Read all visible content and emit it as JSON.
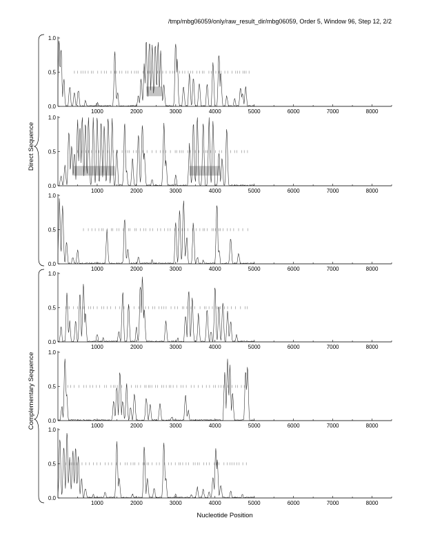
{
  "header": "/tmp/mbg06059/only/raw_result_dir/mbg06059, Order 5, Window 96, Step 12, 2/2",
  "strand_labels": {
    "direct": "Direct Sequence",
    "complementary": "Complementary Sequence"
  },
  "chart_data": {
    "type": "line",
    "xlabel": "Nucleotide Position",
    "xlim": [
      0,
      8500
    ],
    "ylim": [
      0,
      1
    ],
    "x_ticks": [
      1000,
      2000,
      3000,
      4000,
      5000,
      6000,
      7000,
      8000
    ],
    "y_ticks": [
      "0.0",
      "0.5",
      "1.0"
    ],
    "panels": [
      {
        "strand": "direct",
        "peaks": [
          [
            30,
            0.95
          ],
          [
            80,
            0.9
          ],
          [
            150,
            0.4
          ],
          [
            300,
            0.3
          ],
          [
            420,
            0.2
          ],
          [
            520,
            0.25
          ],
          [
            700,
            0.08
          ],
          [
            1000,
            0.05
          ],
          [
            1450,
            0.8
          ],
          [
            1520,
            0.2
          ],
          [
            2050,
            0.15
          ],
          [
            2120,
            0.4
          ],
          [
            2200,
            0.6
          ],
          [
            2250,
            0.95
          ],
          [
            2330,
            0.98
          ],
          [
            2400,
            0.9
          ],
          [
            2480,
            0.95
          ],
          [
            2550,
            0.97
          ],
          [
            2620,
            0.8
          ],
          [
            2700,
            0.3
          ],
          [
            3000,
            0.98
          ],
          [
            3040,
            0.7
          ],
          [
            3200,
            0.3
          ],
          [
            3350,
            0.5
          ],
          [
            3450,
            0.4
          ],
          [
            3600,
            0.35
          ],
          [
            3800,
            0.3
          ],
          [
            3950,
            0.6
          ],
          [
            4100,
            0.8
          ],
          [
            4150,
            0.5
          ],
          [
            4300,
            0.15
          ],
          [
            4500,
            0.12
          ],
          [
            4650,
            0.3
          ],
          [
            4700,
            0.2
          ],
          [
            4780,
            0.3
          ]
        ],
        "ticks": [
          [
            420,
            4880
          ]
        ],
        "boxes": [
          [
            2250,
            2650
          ]
        ]
      },
      {
        "strand": "direct",
        "peaks": [
          [
            80,
            0.15
          ],
          [
            180,
            0.3
          ],
          [
            280,
            0.8
          ],
          [
            350,
            0.6
          ],
          [
            420,
            0.5
          ],
          [
            500,
            0.95
          ],
          [
            560,
            0.85
          ],
          [
            620,
            0.98
          ],
          [
            700,
            0.92
          ],
          [
            780,
            0.98
          ],
          [
            900,
            0.97
          ],
          [
            1000,
            0.96
          ],
          [
            1100,
            0.98
          ],
          [
            1180,
            0.92
          ],
          [
            1280,
            0.99
          ],
          [
            1380,
            0.96
          ],
          [
            1500,
            0.5
          ],
          [
            1700,
            0.9
          ],
          [
            1750,
            0.2
          ],
          [
            1900,
            0.4
          ],
          [
            2050,
            0.8
          ],
          [
            2150,
            0.95
          ],
          [
            2200,
            0.5
          ],
          [
            2400,
            0.1
          ],
          [
            2700,
            0.95
          ],
          [
            2750,
            0.4
          ],
          [
            3000,
            0.15
          ],
          [
            3350,
            0.6
          ],
          [
            3450,
            0.95
          ],
          [
            3550,
            0.97
          ],
          [
            3700,
            0.95
          ],
          [
            3850,
            0.97
          ],
          [
            3950,
            0.9
          ],
          [
            4100,
            0.5
          ],
          [
            4180,
            0.4
          ],
          [
            4300,
            0.8
          ]
        ],
        "ticks": [
          [
            500,
            4850
          ]
        ],
        "boxes": [
          [
            400,
            1450
          ],
          [
            3350,
            4130
          ]
        ]
      },
      {
        "strand": "direct",
        "peaks": [
          [
            40,
            0.95
          ],
          [
            120,
            0.9
          ],
          [
            220,
            0.3
          ],
          [
            380,
            0.1
          ],
          [
            500,
            0.2
          ],
          [
            1250,
            0.5
          ],
          [
            1700,
            0.7
          ],
          [
            1780,
            0.2
          ],
          [
            2050,
            0.1
          ],
          [
            2400,
            0.05
          ],
          [
            3000,
            0.6
          ],
          [
            3100,
            0.8
          ],
          [
            3200,
            0.95
          ],
          [
            3280,
            0.4
          ],
          [
            3450,
            0.6
          ],
          [
            3550,
            0.1
          ],
          [
            3700,
            0.05
          ],
          [
            4050,
            0.9
          ],
          [
            4100,
            0.2
          ],
          [
            4400,
            0.4
          ],
          [
            4600,
            0.15
          ]
        ],
        "ticks": [
          [
            650,
            4900
          ]
        ],
        "boxes": []
      },
      {
        "strand": "complementary",
        "peaks": [
          [
            80,
            0.2
          ],
          [
            230,
            0.7
          ],
          [
            300,
            0.3
          ],
          [
            450,
            0.3
          ],
          [
            560,
            0.7
          ],
          [
            650,
            0.85
          ],
          [
            700,
            0.4
          ],
          [
            1000,
            0.1
          ],
          [
            1150,
            0.05
          ],
          [
            1550,
            0.15
          ],
          [
            1650,
            0.75
          ],
          [
            1800,
            0.55
          ],
          [
            2000,
            0.2
          ],
          [
            2100,
            0.85
          ],
          [
            2150,
            0.93
          ],
          [
            2200,
            0.5
          ],
          [
            2750,
            0.3
          ],
          [
            3050,
            0.05
          ],
          [
            3250,
            0.4
          ],
          [
            3330,
            0.8
          ],
          [
            3420,
            0.65
          ],
          [
            3580,
            0.4
          ],
          [
            3800,
            0.5
          ],
          [
            3900,
            0.15
          ],
          [
            4000,
            0.8
          ],
          [
            4100,
            0.5
          ],
          [
            4200,
            0.6
          ],
          [
            4320,
            0.45
          ],
          [
            4400,
            0.3
          ],
          [
            4550,
            0.1
          ]
        ],
        "ticks": [
          [
            200,
            4850
          ]
        ],
        "boxes": []
      },
      {
        "strand": "complementary",
        "peaks": [
          [
            100,
            0.2
          ],
          [
            180,
            0.95
          ],
          [
            220,
            0.4
          ],
          [
            1420,
            0.3
          ],
          [
            1500,
            0.5
          ],
          [
            1580,
            0.72
          ],
          [
            1650,
            0.3
          ],
          [
            1750,
            0.55
          ],
          [
            1850,
            0.2
          ],
          [
            1950,
            0.4
          ],
          [
            2250,
            0.35
          ],
          [
            2350,
            0.25
          ],
          [
            2600,
            0.25
          ],
          [
            2900,
            0.05
          ],
          [
            3250,
            0.4
          ],
          [
            3320,
            0.15
          ],
          [
            4250,
            0.7
          ],
          [
            4320,
            0.85
          ],
          [
            4380,
            0.8
          ],
          [
            4450,
            0.4
          ],
          [
            4780,
            0.72
          ],
          [
            4830,
            0.8
          ]
        ],
        "ticks": [
          [
            250,
            4850
          ]
        ],
        "boxes": []
      },
      {
        "strand": "complementary",
        "peaks": [
          [
            50,
            0.85
          ],
          [
            150,
            0.8
          ],
          [
            230,
            0.95
          ],
          [
            300,
            0.6
          ],
          [
            380,
            0.72
          ],
          [
            450,
            0.7
          ],
          [
            520,
            0.65
          ],
          [
            600,
            0.3
          ],
          [
            700,
            0.15
          ],
          [
            900,
            0.05
          ],
          [
            1200,
            0.1
          ],
          [
            1500,
            0.8
          ],
          [
            1560,
            0.3
          ],
          [
            1900,
            0.05
          ],
          [
            2200,
            0.8
          ],
          [
            2280,
            0.3
          ],
          [
            2450,
            0.15
          ],
          [
            2700,
            0.85
          ],
          [
            2750,
            0.3
          ],
          [
            3000,
            0.05
          ],
          [
            3400,
            0.05
          ],
          [
            3550,
            0.15
          ],
          [
            3700,
            0.12
          ],
          [
            3850,
            0.1
          ],
          [
            3950,
            0.3
          ],
          [
            4020,
            0.75
          ],
          [
            4060,
            0.55
          ],
          [
            4150,
            0.2
          ],
          [
            4400,
            0.1
          ],
          [
            4700,
            0.05
          ]
        ],
        "ticks": [
          [
            200,
            4830
          ]
        ],
        "boxes": []
      }
    ]
  }
}
